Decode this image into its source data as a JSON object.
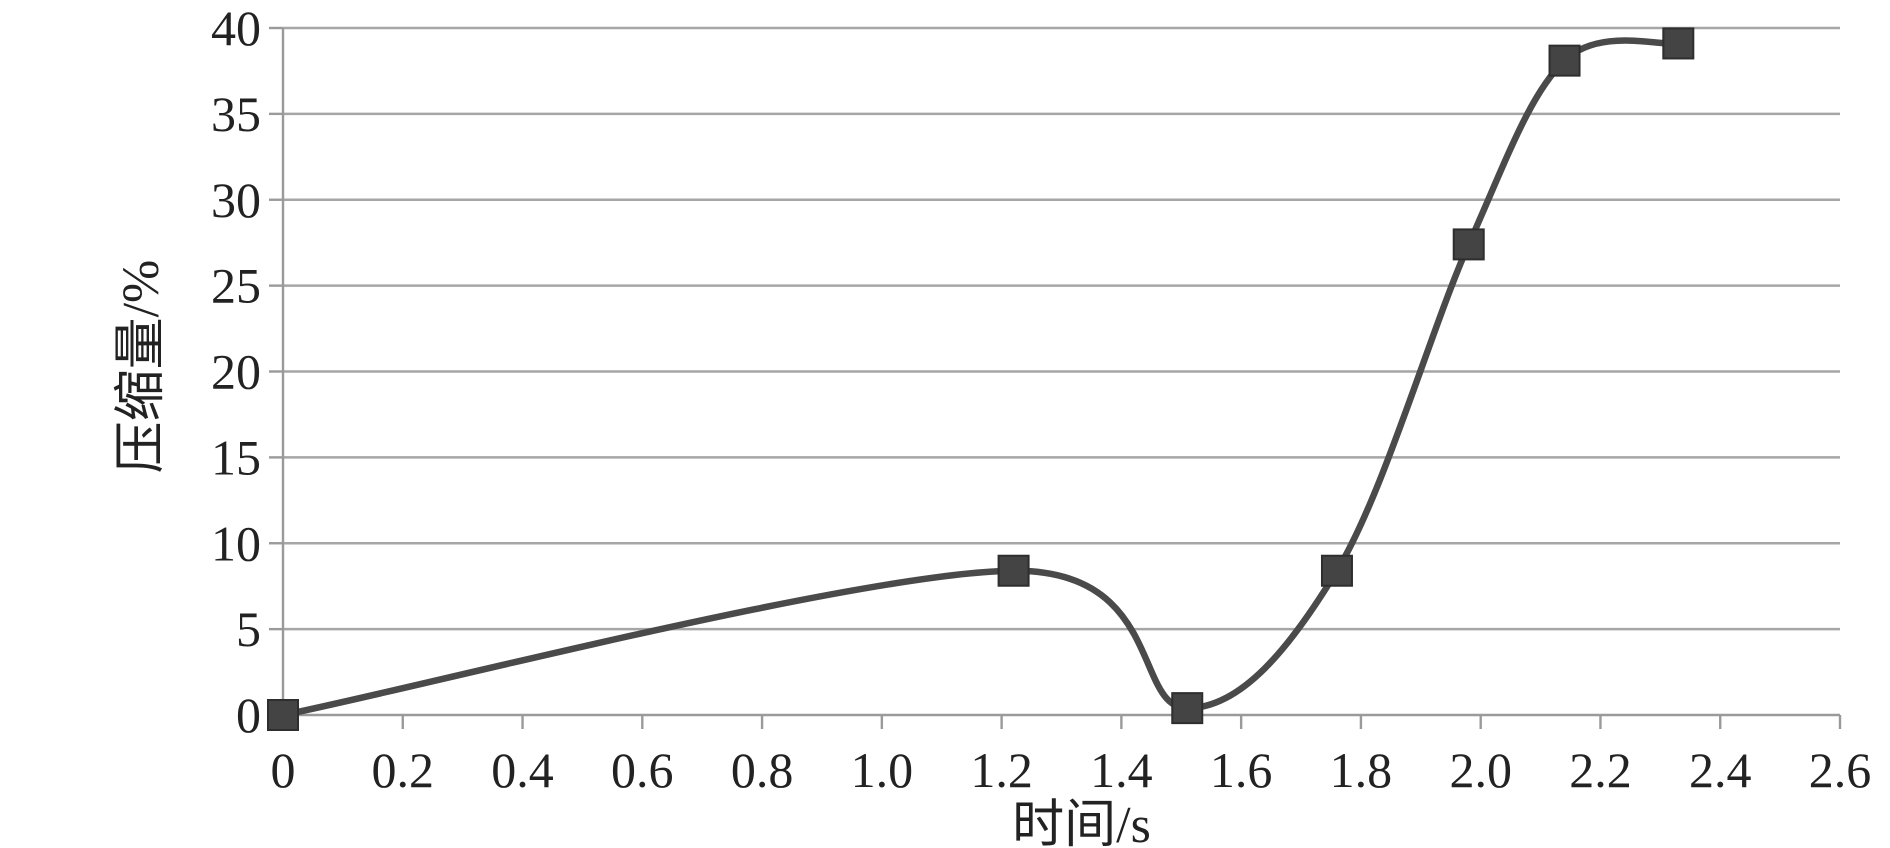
{
  "chart_data": {
    "type": "line",
    "xlabel": "时间/s",
    "ylabel": "压缩量/%",
    "xlim": [
      0,
      2.6
    ],
    "ylim": [
      0,
      40
    ],
    "x_ticks": [
      "0",
      "0.2",
      "0.4",
      "0.6",
      "0.8",
      "1.0",
      "1.2",
      "1.4",
      "1.6",
      "1.8",
      "2.0",
      "2.2",
      "2.4",
      "2.6"
    ],
    "y_ticks": [
      "0",
      "5",
      "10",
      "15",
      "20",
      "25",
      "30",
      "35",
      "40"
    ],
    "grid": "horizontal",
    "smooth": true,
    "marker": "square",
    "series": [
      {
        "color": "#4a4a4a",
        "x": [
          0,
          1.22,
          1.51,
          1.76,
          1.98,
          2.14,
          2.33
        ],
        "y": [
          0,
          8.4,
          0.4,
          8.4,
          27.4,
          38.1,
          39.1
        ]
      }
    ]
  }
}
